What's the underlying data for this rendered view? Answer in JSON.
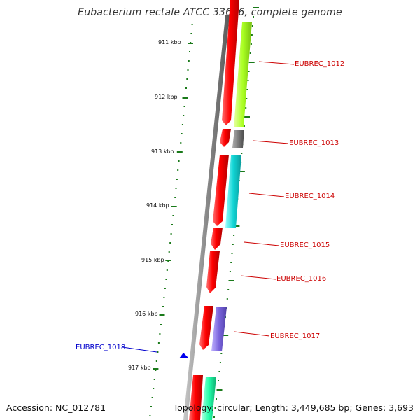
{
  "title": "Eubacterium rectale ATCC 33656, complete genome",
  "accession_text": "Accession: NC_012781",
  "info_text": "Topology: circular; Length: 3,449,685 bp; Genes: 3,693",
  "scale_labels": [
    "911 kbp",
    "912 kbp",
    "913 kbp",
    "914 kbp",
    "915 kbp",
    "916 kbp",
    "917 kbp"
  ],
  "gene_labels": {
    "g1012": "EUBREC_1012",
    "g1013": "EUBREC_1013",
    "g1014": "EUBREC_1014",
    "g1015": "EUBREC_1015",
    "g1016": "EUBREC_1016",
    "g1017": "EUBREC_1017",
    "g1018": "EUBREC_1018"
  },
  "colors": {
    "forward_gene": "#ff1a1a",
    "backbone": "#8a8a8a",
    "scale": "#1a7a1a",
    "label_red": "#cc0000",
    "label_blue": "#0000cc",
    "cds_1012": "#aaff22",
    "cds_1013": "#7a7a7a",
    "cds_1014": "#11d4d4",
    "cds_1017": "#7a64dd",
    "cds_next": "#22ffaa",
    "small_feature": "#0000ee"
  }
}
